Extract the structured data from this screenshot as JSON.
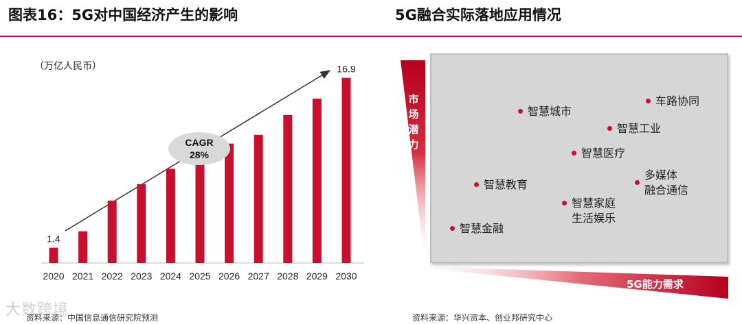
{
  "left": {
    "title": "图表16：5G对中国经济产生的影响",
    "unit_label": "（万亿人民币）",
    "source": "资料来源：中国信息通信研究院预测",
    "cagr_label_line1": "CAGR",
    "cagr_label_line2": "28%"
  },
  "right": {
    "title": "5G融合实际落地应用情况",
    "y_axis_label": "市场潜力",
    "x_axis_label": "5G能力需求",
    "source": "资料来源：华兴资本、创业邦研究中心",
    "items": [
      {
        "label": "智慧城市"
      },
      {
        "label": "车路协同"
      },
      {
        "label": "智慧工业"
      },
      {
        "label": "智慧医疗"
      },
      {
        "label": "多媒体\n融合通信"
      },
      {
        "label": "智慧教育"
      },
      {
        "label": "智慧家庭\n生活娱乐"
      },
      {
        "label": "智慧金融"
      }
    ]
  },
  "watermark": "大数跨境",
  "colors": {
    "accent": "#c8102e",
    "matrix_bg": "#d6d6d6"
  },
  "chart_data": {
    "type": "bar",
    "categories": [
      "2020",
      "2021",
      "2022",
      "2023",
      "2024",
      "2025",
      "2026",
      "2027",
      "2028",
      "2029",
      "2030"
    ],
    "values": [
      1.4,
      2.9,
      5.7,
      7.2,
      8.6,
      9.3,
      10.9,
      11.7,
      13.5,
      15.0,
      16.9
    ],
    "data_labels": {
      "2020": "1.4",
      "2030": "16.9"
    },
    "ylim": [
      0,
      18
    ],
    "annotation": "CAGR 28%",
    "grid": false,
    "legend": "none"
  }
}
